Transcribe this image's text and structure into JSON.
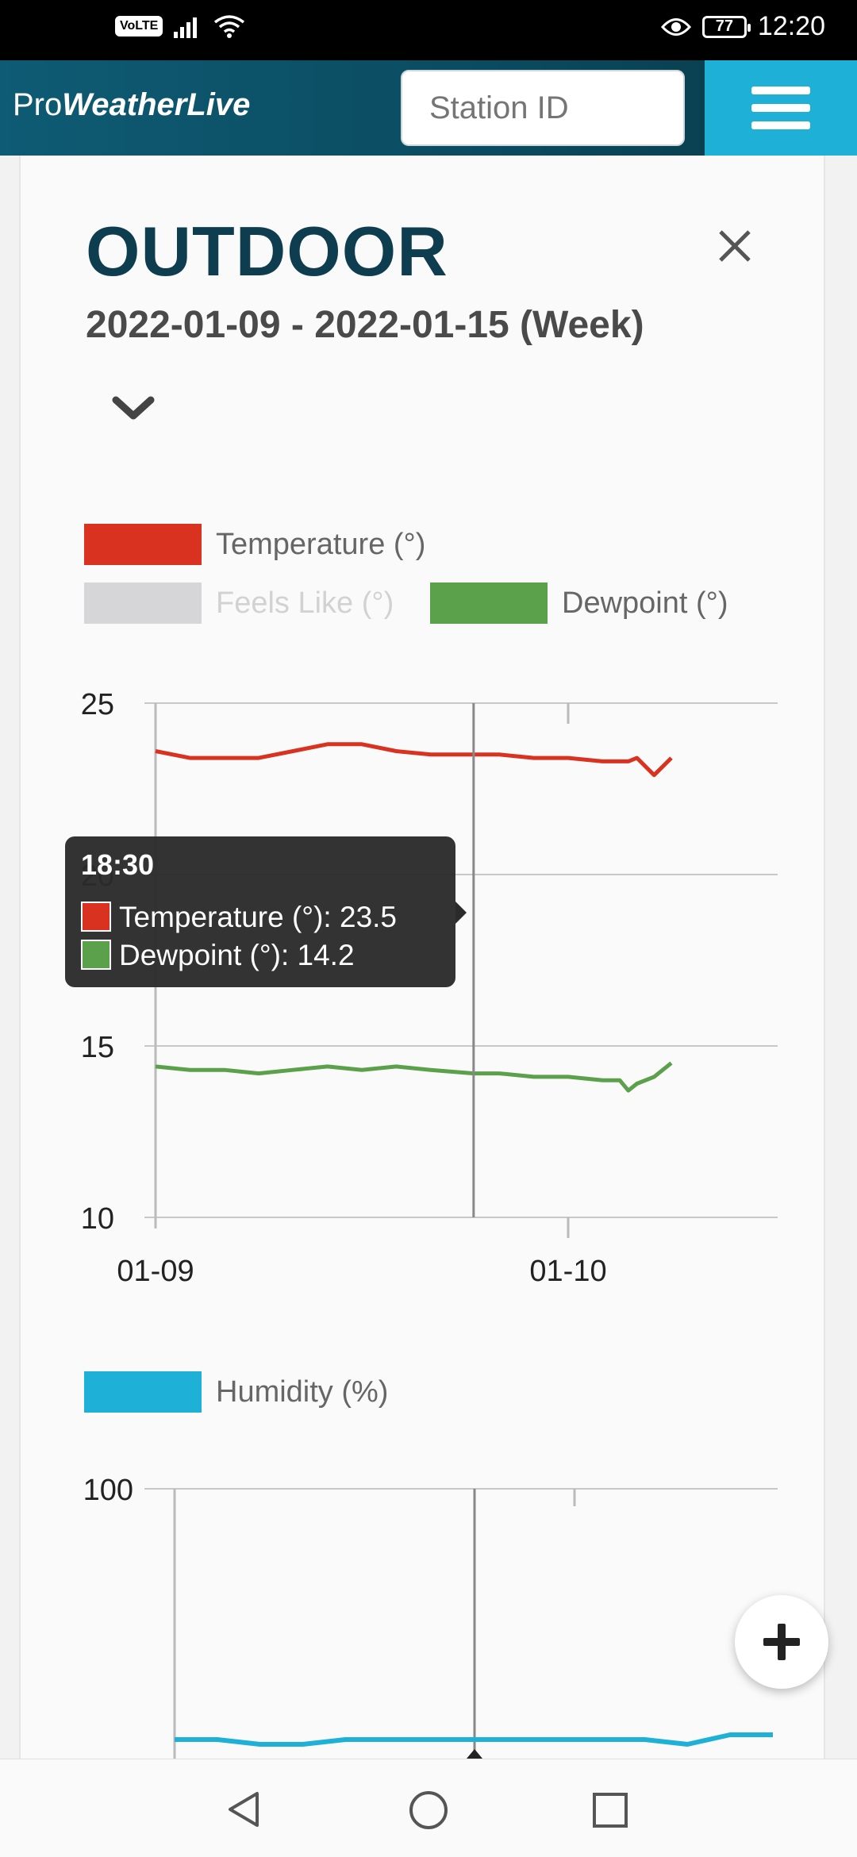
{
  "status_bar": {
    "volte": "VoLTE",
    "battery": "77",
    "time": "12:20"
  },
  "header": {
    "logo_pro": "Pro",
    "logo_bold": "WeatherLive",
    "station_placeholder": "Station ID"
  },
  "panel": {
    "title": "OUTDOOR",
    "date_range": "2022-01-09 - 2022-01-15 (Week)"
  },
  "legend1": {
    "temperature": "Temperature (°)",
    "feels_like": "Feels Like (°)",
    "dewpoint": "Dewpoint (°)"
  },
  "legend2": {
    "humidity": "Humidity (%)"
  },
  "tooltip": {
    "time": "18:30",
    "temperature_line": "Temperature (°): 23.5",
    "dewpoint_line": "Dewpoint (°): 14.2"
  },
  "colors": {
    "temperature": "#d93221",
    "feels_like": "#d6d6d8",
    "dewpoint": "#5ba04a",
    "humidity": "#1fb0d8",
    "brand_dark": "#0e3d4f"
  },
  "chart_data": [
    {
      "type": "line",
      "ylim": [
        10,
        25
      ],
      "yticks": [
        "10",
        "15",
        "20",
        "25"
      ],
      "xtick_labels": [
        "01-09",
        "01-10"
      ],
      "series": [
        {
          "name": "Temperature (°)",
          "x": [
            "01-09 00:00",
            "01-09 02:00",
            "01-09 04:00",
            "01-09 06:00",
            "01-09 08:00",
            "01-09 10:00",
            "01-09 12:00",
            "01-09 14:00",
            "01-09 16:00",
            "01-09 18:30",
            "01-09 20:00",
            "01-09 22:00",
            "01-10 00:00",
            "01-10 02:00",
            "01-10 03:30",
            "01-10 04:00",
            "01-10 05:00",
            "01-10 06:00"
          ],
          "values": [
            23.6,
            23.4,
            23.4,
            23.4,
            23.6,
            23.8,
            23.8,
            23.6,
            23.5,
            23.5,
            23.5,
            23.4,
            23.4,
            23.3,
            23.3,
            23.4,
            22.9,
            23.4
          ]
        },
        {
          "name": "Feels Like (°)",
          "hidden": true,
          "values": []
        },
        {
          "name": "Dewpoint (°)",
          "x": [
            "01-09 00:00",
            "01-09 02:00",
            "01-09 04:00",
            "01-09 06:00",
            "01-09 08:00",
            "01-09 10:00",
            "01-09 12:00",
            "01-09 14:00",
            "01-09 16:00",
            "01-09 18:30",
            "01-09 20:00",
            "01-09 22:00",
            "01-10 00:00",
            "01-10 02:00",
            "01-10 03:00",
            "01-10 03:30",
            "01-10 04:00",
            "01-10 05:00",
            "01-10 06:00"
          ],
          "values": [
            14.4,
            14.3,
            14.3,
            14.2,
            14.3,
            14.4,
            14.3,
            14.4,
            14.3,
            14.2,
            14.2,
            14.1,
            14.1,
            14.0,
            14.0,
            13.7,
            13.9,
            14.1,
            14.5
          ]
        }
      ]
    },
    {
      "type": "line",
      "yticks": [
        "100"
      ],
      "series": [
        {
          "name": "Humidity (%)",
          "values": [
            54,
            54,
            53,
            53,
            54,
            54,
            54,
            54,
            54,
            54,
            54,
            54,
            53,
            55,
            55
          ]
        }
      ]
    }
  ]
}
